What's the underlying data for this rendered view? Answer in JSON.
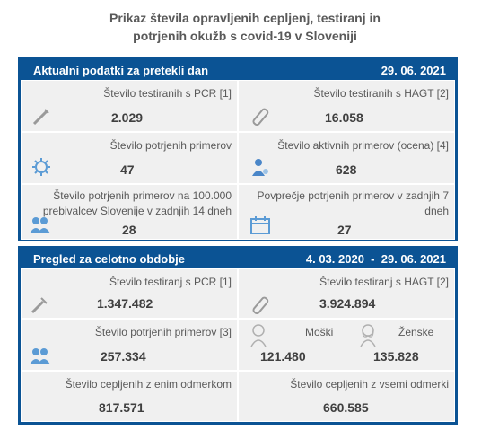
{
  "title_line1": "Prikaz števila opravljenih cepljenj, testiranj in",
  "title_line2": "potrjenih okužb s covid-19 v Sloveniji",
  "panel1": {
    "header": "Aktualni podatki za pretekli dan",
    "date": "29. 06. 2021",
    "pcr_label": "Število testiranih s PCR [1]",
    "pcr_value": "2.029",
    "hagt_label": "Število testiranih s HAGT [2]",
    "hagt_value": "16.058",
    "confirmed_label": "Število potrjenih primerov",
    "confirmed_value": "47",
    "active_label": "Število aktivnih primerov (ocena) [4]",
    "active_value": "628",
    "per100k_label_1": "Število potrjenih primerov na 100.000",
    "per100k_label_2": "prebivalcev Slovenije v zadnjih 14 dneh",
    "per100k_value": "28",
    "avg7_label_1": "Povprečje potrjenih primerov v zadnjih 7",
    "avg7_label_2": "dneh",
    "avg7_value": "27"
  },
  "panel2": {
    "header": "Pregled za celotno obdobje",
    "date_range": "4. 03. 2020  -  29. 06. 2021",
    "pcr_label": "Število testiranj s PCR [1]",
    "pcr_value": "1.347.482",
    "hagt_label": "Število testiranj s HAGT [2]",
    "hagt_value": "3.924.894",
    "confirmed_label": "Število potrjenih primerov [3]",
    "confirmed_value": "257.334",
    "male_label": "Moški",
    "male_value": "121.480",
    "female_label": "Ženske",
    "female_value": "135.828",
    "one_dose_label": "Število cepljenih z enim odmerkom",
    "one_dose_value": "817.571",
    "all_doses_label": "Število cepljenih z vsemi odmerki",
    "all_doses_value": "660.585"
  },
  "icons": [
    "syringe-icon",
    "test-tube-icon",
    "virus-icon",
    "person-icon",
    "people-icon",
    "calendar-icon",
    "male-icon",
    "female-icon"
  ]
}
